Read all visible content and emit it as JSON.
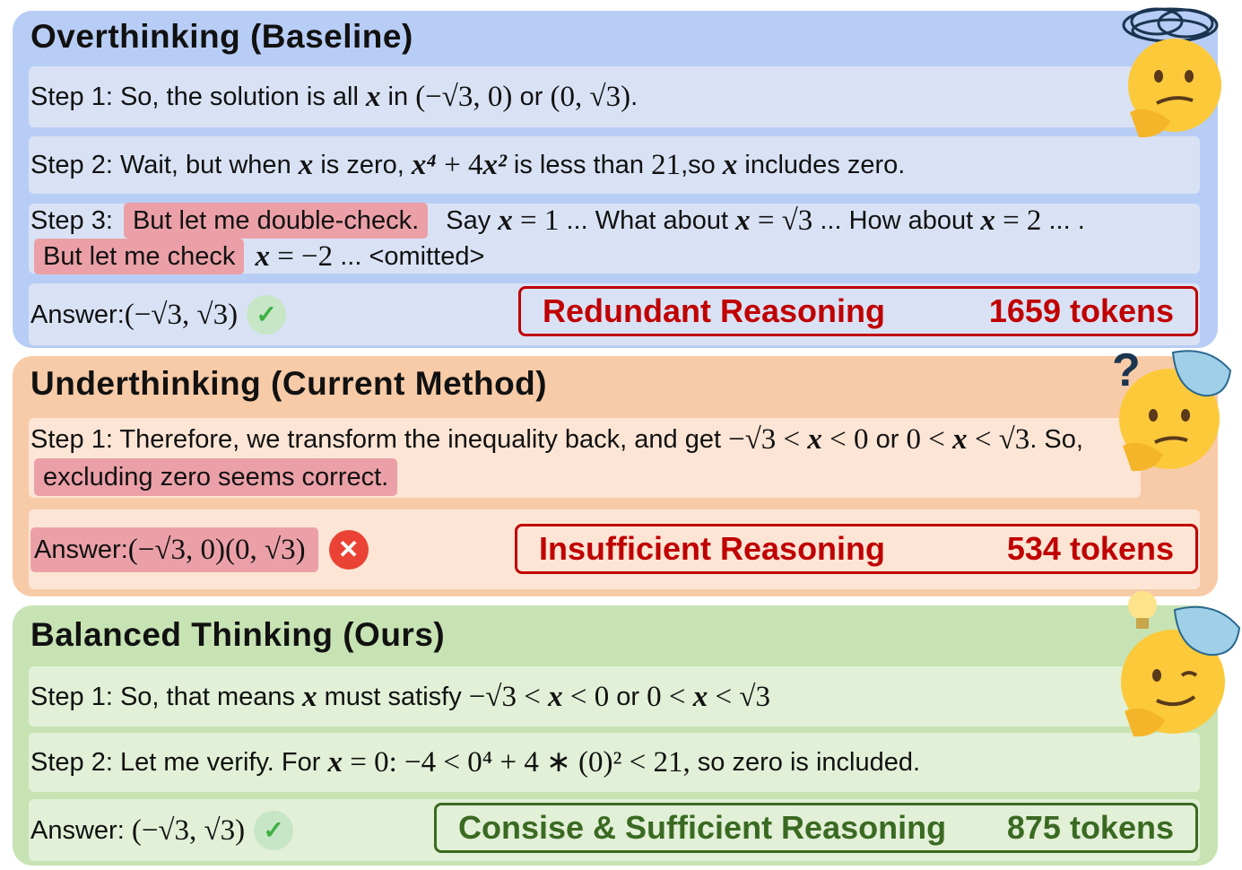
{
  "panels": [
    {
      "title": "Overthinking (Baseline)",
      "rows": [
        [
          [
            "t",
            "Step 1: So, the solution is all "
          ],
          [
            "mi",
            "x"
          ],
          [
            "t",
            " in "
          ],
          [
            "m",
            "(−√3, 0) "
          ],
          [
            "t",
            "or "
          ],
          [
            "m",
            "(0, √3)"
          ],
          [
            "t",
            "."
          ]
        ],
        [
          [
            "t",
            "Step 2: Wait, but when "
          ],
          [
            "mi",
            "x"
          ],
          [
            "t",
            " is zero, "
          ],
          [
            "mi",
            "x⁴"
          ],
          [
            "m",
            " + 4"
          ],
          [
            "mi",
            "x²"
          ],
          [
            "t",
            " is less than "
          ],
          [
            "m",
            "21"
          ],
          [
            "t",
            ",so "
          ],
          [
            "mi",
            "x"
          ],
          [
            "t",
            " includes zero."
          ]
        ],
        [
          [
            "t",
            "Step 3: "
          ],
          [
            "hl",
            "But let me double-check."
          ],
          [
            "t",
            "  Say "
          ],
          [
            "mi",
            "x"
          ],
          [
            "m",
            " = 1"
          ],
          [
            "t",
            " ... What about "
          ],
          [
            "mi",
            "x"
          ],
          [
            "m",
            " = √3"
          ],
          [
            "t",
            " ... How about "
          ],
          [
            "mi",
            "x"
          ],
          [
            "m",
            " = 2"
          ],
          [
            "t",
            " ... . "
          ],
          [
            "hl",
            "But let me check"
          ],
          [
            "t",
            " "
          ],
          [
            "mi",
            "x"
          ],
          [
            "m",
            " = −2"
          ],
          [
            "t",
            " ... <omitted>"
          ]
        ]
      ],
      "answer": [
        [
          "t",
          "Answer:"
        ],
        [
          "m",
          "(−√3, √3)"
        ]
      ],
      "answer_status": "correct",
      "tag_label": "Redundant Reasoning",
      "tag_tokens": "1659 tokens"
    },
    {
      "title": "Underthinking (Current Method)",
      "rows": [
        [
          [
            "t",
            "Step 1: Therefore, we transform the inequality back, and get "
          ],
          [
            "m",
            "−√3 < "
          ],
          [
            "mi",
            "x"
          ],
          [
            "m",
            " < 0"
          ],
          [
            "t",
            " or "
          ],
          [
            "m",
            "0 < "
          ],
          [
            "mi",
            "x"
          ],
          [
            "m",
            " < √3"
          ],
          [
            "t",
            ". So, "
          ],
          [
            "hl",
            "excluding zero seems correct."
          ]
        ]
      ],
      "answer": [
        [
          "t",
          "Answer:"
        ],
        [
          "m",
          "(−√3, 0)(0, √3)"
        ]
      ],
      "answer_status": "wrong",
      "tag_label": "Insufficient Reasoning",
      "tag_tokens": "534 tokens"
    },
    {
      "title": "Balanced Thinking (Ours)",
      "rows": [
        [
          [
            "t",
            "Step 1: So, that means "
          ],
          [
            "mi",
            "x"
          ],
          [
            "t",
            " must satisfy "
          ],
          [
            "m",
            "−√3 < "
          ],
          [
            "mi",
            "x"
          ],
          [
            "m",
            " < 0"
          ],
          [
            "t",
            " or "
          ],
          [
            "m",
            "0 < "
          ],
          [
            "mi",
            "x"
          ],
          [
            "m",
            " < √3"
          ]
        ],
        [
          [
            "t",
            "Step 2: Let me verify. For "
          ],
          [
            "mi",
            "x"
          ],
          [
            "m",
            " = 0: −4 < 0⁴ + 4 ∗ (0)² < 21,"
          ],
          [
            "t",
            " so zero is included."
          ]
        ]
      ],
      "answer": [
        [
          "t",
          "Answer: "
        ],
        [
          "m",
          "(−√3, √3)"
        ]
      ],
      "answer_status": "correct",
      "tag_label": "Consise & Sufficient Reasoning",
      "tag_tokens": "875 tokens"
    }
  ],
  "colors": {
    "overthinking": "#b8cdf5",
    "underthinking": "#f7cba8",
    "balanced": "#c7e3b3",
    "highlight": "#eba0a8",
    "red_tag": "#c00000",
    "green_tag": "#3a6a22"
  },
  "icons": {
    "panel_0": "confused-thinking-face-icon",
    "panel_1": "question-thinking-face-icon",
    "panel_2": "lightbulb-winking-thinking-face-icon",
    "correct": "check-icon",
    "wrong": "x-icon"
  }
}
